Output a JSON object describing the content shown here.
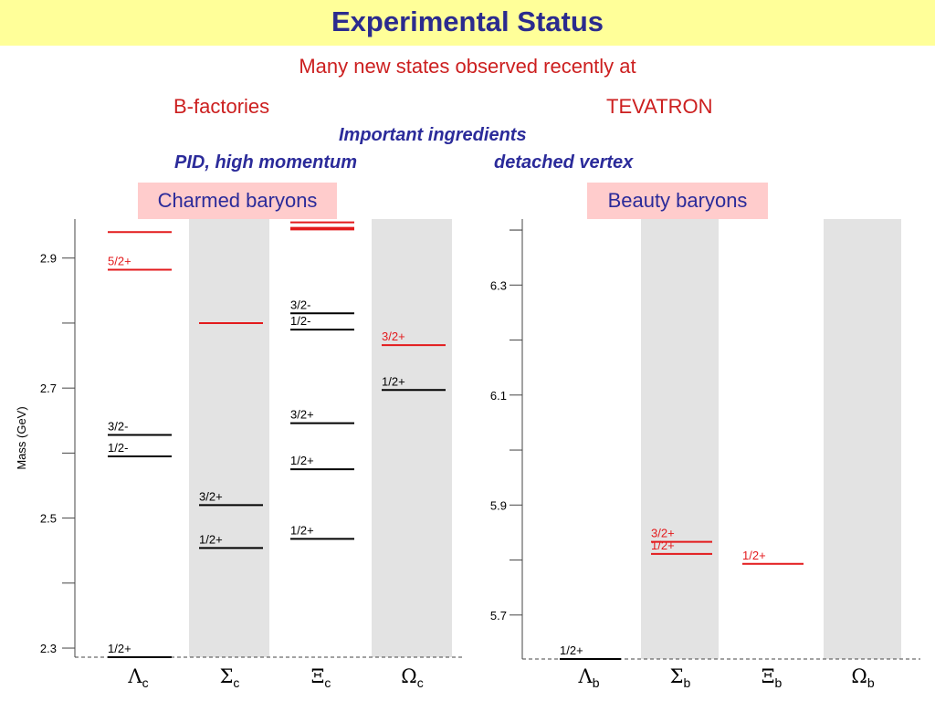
{
  "header": {
    "title": "Experimental Status",
    "line1": "Many new states observed recently at",
    "bfactories": "B-factories",
    "tevatron": "TEVATRON",
    "ingredients": "Important ingredients",
    "pid": "PID, high momentum",
    "vertex": "detached vertex"
  },
  "colors": {
    "observed_red": "#e31a1c",
    "known_black": "#000000",
    "shade": "#e3e3e3",
    "title_bg": "#ffff99",
    "box_bg": "#ffcccc"
  },
  "chart_data": [
    {
      "type": "level-diagram",
      "box_label": "Charmed baryons",
      "ylabel": "Mass (GeV)",
      "ylim": [
        2.286,
        2.96
      ],
      "yticks": [
        "2.3",
        "2.5",
        "2.7",
        "2.9"
      ],
      "baseline": 2.286,
      "categories": [
        {
          "sym": "Λ",
          "sub": "c",
          "shaded": false
        },
        {
          "sym": "Σ",
          "sub": "c",
          "shaded": true
        },
        {
          "sym": "Ξ",
          "sub": "c",
          "shaded": false
        },
        {
          "sym": "Ω",
          "sub": "c",
          "shaded": true
        }
      ],
      "levels": [
        {
          "col": 0,
          "mass": 2.286,
          "label": "1/2+",
          "color": "black"
        },
        {
          "col": 0,
          "mass": 2.595,
          "label": "1/2-",
          "color": "black"
        },
        {
          "col": 0,
          "mass": 2.628,
          "label": "3/2-",
          "color": "black"
        },
        {
          "col": 0,
          "mass": 2.882,
          "label": "5/2+",
          "color": "red"
        },
        {
          "col": 0,
          "mass": 2.94,
          "label": "",
          "color": "red"
        },
        {
          "col": 1,
          "mass": 2.454,
          "label": "1/2+",
          "color": "black"
        },
        {
          "col": 1,
          "mass": 2.52,
          "label": "3/2+",
          "color": "black"
        },
        {
          "col": 1,
          "mass": 2.8,
          "label": "",
          "color": "red"
        },
        {
          "col": 2,
          "mass": 2.468,
          "label": "1/2+",
          "color": "black"
        },
        {
          "col": 2,
          "mass": 2.575,
          "label": "1/2+",
          "color": "black"
        },
        {
          "col": 2,
          "mass": 2.646,
          "label": "3/2+",
          "color": "black"
        },
        {
          "col": 2,
          "mass": 2.79,
          "label": "1/2-",
          "color": "black"
        },
        {
          "col": 2,
          "mass": 2.815,
          "label": "3/2-",
          "color": "black"
        },
        {
          "col": 2,
          "mass": 2.98,
          "label": "",
          "color": "red"
        },
        {
          "col": 2,
          "mass": 3.055,
          "label": "",
          "color": "red"
        },
        {
          "col": 2,
          "mass": 3.077,
          "label": "",
          "color": "red"
        },
        {
          "col": 3,
          "mass": 2.697,
          "label": "1/2+",
          "color": "black"
        },
        {
          "col": 3,
          "mass": 2.766,
          "label": "3/2+",
          "color": "red"
        }
      ]
    },
    {
      "type": "level-diagram",
      "box_label": "Beauty baryons",
      "ylabel": "",
      "ylim": [
        5.62,
        6.42
      ],
      "yticks": [
        "5.7",
        "5.9",
        "6.1",
        "6.3"
      ],
      "baseline": 5.62,
      "categories": [
        {
          "sym": "Λ",
          "sub": "b",
          "shaded": false
        },
        {
          "sym": "Σ",
          "sub": "b",
          "shaded": true
        },
        {
          "sym": "Ξ",
          "sub": "b",
          "shaded": false
        },
        {
          "sym": "Ω",
          "sub": "b",
          "shaded": true
        }
      ],
      "levels": [
        {
          "col": 0,
          "mass": 5.62,
          "label": "1/2+",
          "color": "black"
        },
        {
          "col": 1,
          "mass": 5.811,
          "label": "1/2+",
          "color": "red"
        },
        {
          "col": 1,
          "mass": 5.833,
          "label": "3/2+",
          "color": "red"
        },
        {
          "col": 2,
          "mass": 5.793,
          "label": "1/2+",
          "color": "red"
        }
      ]
    }
  ]
}
